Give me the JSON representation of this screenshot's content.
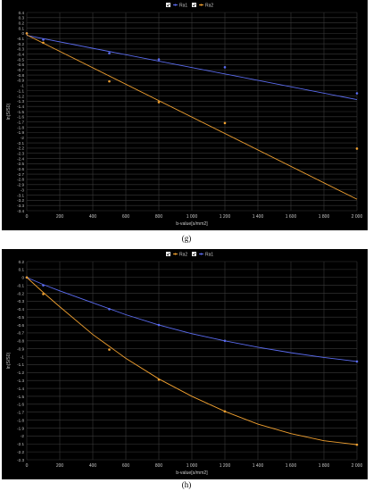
{
  "colors": {
    "background": "#000000",
    "grid": "#3a3a3a",
    "axis_text": "#c8c8c8",
    "ra1": "#5b6cf0",
    "ra2": "#f0a030",
    "legend_check": "#ffffff"
  },
  "captions": {
    "g": "(g)",
    "h": "(h)"
  },
  "chart_data": [
    {
      "type": "scatter",
      "id": "g",
      "xlabel": "b-value[s/mm2]",
      "ylabel": "ln(S/S0)",
      "xlim": [
        0,
        2000
      ],
      "ylim": [
        -3.4,
        0.4
      ],
      "x_ticks": [
        0,
        200,
        400,
        600,
        800,
        1000,
        1200,
        1400,
        1600,
        1800,
        2000
      ],
      "x_tick_labels": [
        "0",
        "200",
        "400",
        "600",
        "800",
        "1 000",
        "1 200",
        "1 400",
        "1 600",
        "1 800",
        "2 000"
      ],
      "y_ticks": [
        0.4,
        0.3,
        0.2,
        0.1,
        0,
        -0.1,
        -0.2,
        -0.3,
        -0.4,
        -0.5,
        -0.6,
        -0.7,
        -0.8,
        -0.9,
        -1,
        -1.1,
        -1.2,
        -1.3,
        -1.4,
        -1.5,
        -1.6,
        -1.7,
        -1.8,
        -1.9,
        -2,
        -2.1,
        -2.2,
        -2.3,
        -2.4,
        -2.5,
        -2.6,
        -2.7,
        -2.8,
        -2.9,
        -3,
        -3.1,
        -3.2,
        -3.3,
        -3.4
      ],
      "y_tick_labels": [
        "0.4",
        "0.3",
        "0.2",
        "0.1",
        "0",
        "-0.1",
        "-0.2",
        "-0.3",
        "-0.4",
        "-0.5",
        "-0.6",
        "-0.7",
        "-0.8",
        "-0.9",
        "-1",
        "-1.1",
        "-1.2",
        "-1.3",
        "-1.4",
        "-1.5",
        "-1.6",
        "-1.7",
        "-1.8",
        "-1.9",
        "-2",
        "-2.1",
        "-2.2",
        "-2.3",
        "-2.4",
        "-2.5",
        "-2.6",
        "-2.7",
        "-2.8",
        "-2.9",
        "-3",
        "-3.1",
        "-3.2",
        "-3.3",
        "-3.4"
      ],
      "grid": true,
      "legend_position": "top-center",
      "legend": [
        "Ra1",
        "Ra2"
      ],
      "series": [
        {
          "name": "Ra1",
          "color": "#5b6cf0",
          "x": [
            0,
            100,
            500,
            800,
            1200,
            2000
          ],
          "y": [
            0,
            -0.12,
            -0.38,
            -0.5,
            -0.65,
            -1.15
          ],
          "fit": "linear",
          "fit_y": [
            -0.04,
            -1.27
          ]
        },
        {
          "name": "Ra2",
          "color": "#f0a030",
          "x": [
            0,
            100,
            500,
            800,
            1200,
            2000
          ],
          "y": [
            0,
            -0.18,
            -0.92,
            -1.32,
            -1.72,
            -2.21
          ],
          "fit": "linear",
          "fit_y": [
            -0.03,
            -3.18
          ]
        }
      ]
    },
    {
      "type": "scatter",
      "id": "h",
      "xlabel": "b-value[s/mm2]",
      "ylabel": "ln(S/S0)",
      "xlim": [
        0,
        2000
      ],
      "ylim": [
        -2.3,
        0.2
      ],
      "x_ticks": [
        0,
        200,
        400,
        600,
        800,
        1000,
        1200,
        1400,
        1600,
        1800,
        2000
      ],
      "x_tick_labels": [
        "0",
        "200",
        "400",
        "600",
        "800",
        "1 000",
        "1 200",
        "1 400",
        "1 600",
        "1 800",
        "2 000"
      ],
      "y_ticks": [
        0.2,
        0.1,
        0,
        -0.1,
        -0.2,
        -0.3,
        -0.4,
        -0.5,
        -0.6,
        -0.7,
        -0.8,
        -0.9,
        -1,
        -1.1,
        -1.2,
        -1.3,
        -1.4,
        -1.5,
        -1.6,
        -1.7,
        -1.8,
        -1.9,
        -2,
        -2.1,
        -2.2,
        -2.3
      ],
      "y_tick_labels": [
        "0.2",
        "0.1",
        "0",
        "-0.1",
        "-0.2",
        "-0.3",
        "-0.4",
        "-0.5",
        "-0.6",
        "-0.7",
        "-0.8",
        "-0.9",
        "-1",
        "-1.1",
        "-1.2",
        "-1.3",
        "-1.4",
        "-1.5",
        "-1.6",
        "-1.7",
        "-1.8",
        "-1.9",
        "-2",
        "-2.1",
        "-2.2",
        "-2.3"
      ],
      "grid": true,
      "legend_position": "top-center",
      "legend": [
        "Ra2",
        "Ra1"
      ],
      "series": [
        {
          "name": "Ra1",
          "color": "#5b6cf0",
          "x": [
            0,
            100,
            500,
            800,
            1200,
            2000
          ],
          "y": [
            0,
            -0.1,
            -0.4,
            -0.6,
            -0.8,
            -1.06
          ],
          "fit": "curve",
          "fit_x": [
            0,
            100,
            200,
            400,
            600,
            800,
            1000,
            1200,
            1400,
            1600,
            1800,
            2000
          ],
          "fit_y": [
            0,
            -0.09,
            -0.17,
            -0.32,
            -0.47,
            -0.6,
            -0.71,
            -0.8,
            -0.88,
            -0.95,
            -1.01,
            -1.06
          ]
        },
        {
          "name": "Ra2",
          "color": "#f0a030",
          "x": [
            0,
            100,
            500,
            800,
            1200,
            2000
          ],
          "y": [
            0,
            -0.21,
            -0.91,
            -1.29,
            -1.69,
            -2.11
          ],
          "fit": "curve",
          "fit_x": [
            0,
            100,
            200,
            400,
            600,
            800,
            1000,
            1200,
            1400,
            1600,
            1800,
            2000
          ],
          "fit_y": [
            0,
            -0.19,
            -0.37,
            -0.72,
            -1.02,
            -1.28,
            -1.5,
            -1.69,
            -1.85,
            -1.97,
            -2.06,
            -2.11
          ]
        }
      ]
    }
  ]
}
